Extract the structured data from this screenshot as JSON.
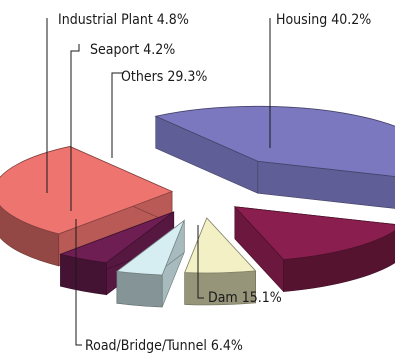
{
  "chart_data": {
    "type": "pie",
    "style": "3d-exploded",
    "title": "",
    "slices": [
      {
        "label": "Housing",
        "value": 40.2,
        "text": "Housing 40.2%",
        "color": "#7b78c0"
      },
      {
        "label": "Dam",
        "value": 15.1,
        "text": "Dam 15.1%",
        "color": "#8a1e4e"
      },
      {
        "label": "Road/Bridge/Tunnel",
        "value": 6.4,
        "text": "Road/Bridge/Tunnel 6.4%",
        "color": "#f2f0c4"
      },
      {
        "label": "Seaport",
        "value": 4.2,
        "text": "Seaport 4.2%",
        "color": "#d6eef2"
      },
      {
        "label": "Industrial Plant",
        "value": 4.8,
        "text": "Industrial Plant 4.8%",
        "color": "#6e1e52"
      },
      {
        "label": "Others",
        "value": 29.3,
        "text": "Others 29.3%",
        "color": "#ee7470"
      }
    ]
  }
}
